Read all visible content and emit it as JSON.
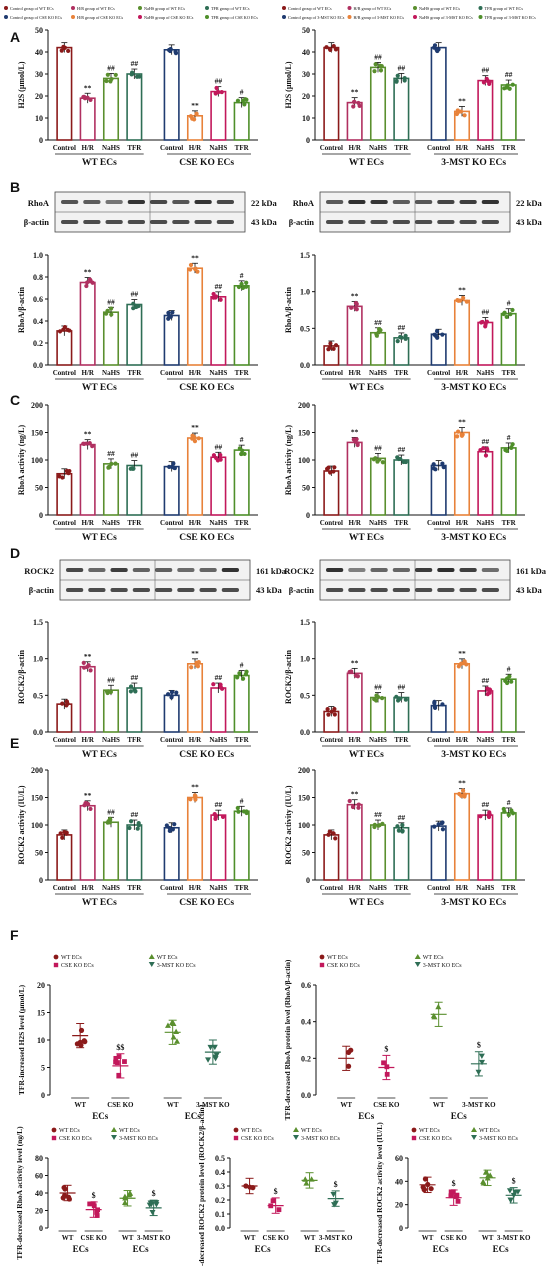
{
  "panel_letters": [
    "A",
    "B",
    "C",
    "D",
    "E",
    "F"
  ],
  "chart_colors": {
    "Control": "#8b1a1a",
    "H/R": "#b03060",
    "NaHS": "#5a8f2e",
    "TFR": "#2e6e55",
    "Control2": "#1f3b70",
    "H/R2": "#e8823a",
    "NaHS2": "#c2185b",
    "TFR2": "#4e8f2a"
  },
  "legend_top": [
    "Control group of WT ECs",
    "H/R group of WT ECs",
    "NaHS group of WT ECs",
    "TFR group of WT ECs",
    "Control group of CSE KO ECs",
    "H/R group of CSE KO ECs",
    "NaHS group of CSE KO ECs",
    "TFR group of CSE KO ECs"
  ],
  "legend_top_right": [
    "Control group of WT ECs",
    "H/R group of WT ECs",
    "NaHS group of WT ECs",
    "TFR group of WT ECs",
    "Control group of 3-MST KO ECs",
    "H/R group of 3-MST KO ECs",
    "NaHS group of 3-MST KO ECs",
    "TFR group of 3-MST KO ECs"
  ],
  "blots": {
    "B_left": {
      "target": "RhoA",
      "target_kda": "22 kDa",
      "actin": "β-actin",
      "actin_kda": "43 kDa"
    },
    "B_right": {
      "target": "RhoA",
      "target_kda": "22 kDa",
      "actin": "β-actin",
      "actin_kda": "43 kDa"
    },
    "D_left": {
      "target": "ROCK2",
      "target_kda": "161 kDa",
      "actin": "β-actin",
      "actin_kda": "43 kDa"
    },
    "D_right": {
      "target": "ROCK2",
      "target_kda": "161 kDa",
      "actin": "β-actin",
      "actin_kda": "43 kDa"
    }
  },
  "chart_data": [
    {
      "panel": "A",
      "type": "bar",
      "ylabel": "H2S (μmol/L)",
      "ylim": [
        0,
        50
      ],
      "yticks": [
        0,
        10,
        20,
        30,
        40,
        50
      ],
      "categories": [
        "Control",
        "H/R",
        "NaHS",
        "TFR",
        "Control",
        "H/R",
        "NaHS",
        "TFR"
      ],
      "groups": [
        "WT ECs",
        "CSE KO ECs"
      ],
      "values": [
        42,
        19,
        28,
        30,
        41,
        11,
        22,
        17
      ],
      "sig": [
        "",
        "**",
        "##",
        "##",
        "",
        "**",
        "##",
        "#"
      ]
    },
    {
      "panel": "A",
      "type": "bar",
      "ylabel": "H2S (μmol/L)",
      "ylim": [
        0,
        50
      ],
      "yticks": [
        0,
        10,
        20,
        30,
        40,
        50
      ],
      "categories": [
        "Control",
        "H/R",
        "NaHS",
        "TFR",
        "Control",
        "H/R",
        "NaHS",
        "TFR"
      ],
      "groups": [
        "WT ECs",
        "3-MST KO ECs"
      ],
      "values": [
        42,
        17,
        33,
        28,
        42,
        13,
        27,
        25
      ],
      "sig": [
        "",
        "**",
        "##",
        "##",
        "",
        "**",
        "##",
        "##"
      ]
    },
    {
      "panel": "B",
      "type": "bar",
      "ylabel": "RhoA/β-actin",
      "ylim": [
        0,
        1.0
      ],
      "yticks": [
        0.0,
        0.2,
        0.4,
        0.6,
        0.8,
        1.0
      ],
      "categories": [
        "Control",
        "H/R",
        "NaHS",
        "TFR",
        "Control",
        "H/R",
        "NaHS",
        "TFR"
      ],
      "groups": [
        "WT ECs",
        "CSE KO ECs"
      ],
      "values": [
        0.31,
        0.75,
        0.48,
        0.55,
        0.45,
        0.88,
        0.62,
        0.72
      ],
      "sig": [
        "",
        "**",
        "##",
        "##",
        "",
        "**",
        "##",
        "#"
      ]
    },
    {
      "panel": "B",
      "type": "bar",
      "ylabel": "RhoA/β-actin",
      "ylim": [
        0,
        1.5
      ],
      "yticks": [
        0.0,
        0.5,
        1.0,
        1.5
      ],
      "categories": [
        "Control",
        "H/R",
        "NaHS",
        "TFR",
        "Control",
        "H/R",
        "NaHS",
        "TFR"
      ],
      "groups": [
        "WT ECs",
        "3-MST KO ECs"
      ],
      "values": [
        0.26,
        0.8,
        0.44,
        0.37,
        0.42,
        0.88,
        0.58,
        0.7
      ],
      "sig": [
        "",
        "**",
        "##",
        "##",
        "",
        "**",
        "##",
        "#"
      ]
    },
    {
      "panel": "C",
      "type": "bar",
      "ylabel": "RhoA activity (ng/L)",
      "ylim": [
        0,
        200
      ],
      "yticks": [
        0,
        50,
        100,
        150,
        200
      ],
      "categories": [
        "Control",
        "H/R",
        "NaHS",
        "TFR",
        "Control",
        "H/R",
        "NaHS",
        "TFR"
      ],
      "groups": [
        "WT ECs",
        "CSE KO ECs"
      ],
      "values": [
        75,
        128,
        93,
        90,
        88,
        140,
        105,
        118
      ],
      "sig": [
        "",
        "**",
        "##",
        "##",
        "",
        "**",
        "##",
        "#"
      ]
    },
    {
      "panel": "C",
      "type": "bar",
      "ylabel": "RhoA activity (ng/L)",
      "ylim": [
        0,
        200
      ],
      "yticks": [
        0,
        50,
        100,
        150,
        200
      ],
      "categories": [
        "Control",
        "H/R",
        "NaHS",
        "TFR",
        "Control",
        "H/R",
        "NaHS",
        "TFR"
      ],
      "groups": [
        "WT ECs",
        "3-MST KO ECs"
      ],
      "values": [
        80,
        132,
        103,
        100,
        90,
        150,
        115,
        122
      ],
      "sig": [
        "",
        "**",
        "##",
        "##",
        "",
        "**",
        "##",
        "#"
      ]
    },
    {
      "panel": "D",
      "type": "bar",
      "ylabel": "ROCK2/β-actin",
      "ylim": [
        0,
        1.5
      ],
      "yticks": [
        0.0,
        0.5,
        1.0,
        1.5
      ],
      "categories": [
        "Control",
        "H/R",
        "NaHS",
        "TFR",
        "Control",
        "H/R",
        "NaHS",
        "TFR"
      ],
      "groups": [
        "WT ECs",
        "CSE KO ECs"
      ],
      "values": [
        0.38,
        0.89,
        0.57,
        0.6,
        0.5,
        0.93,
        0.6,
        0.77
      ],
      "sig": [
        "",
        "**",
        "##",
        "##",
        "",
        "**",
        "##",
        "#"
      ]
    },
    {
      "panel": "D",
      "type": "bar",
      "ylabel": "ROCK2/β-actin",
      "ylim": [
        0,
        1.5
      ],
      "yticks": [
        0.0,
        0.5,
        1.0,
        1.5
      ],
      "categories": [
        "Control",
        "H/R",
        "NaHS",
        "TFR",
        "Control",
        "H/R",
        "NaHS",
        "TFR"
      ],
      "groups": [
        "WT ECs",
        "3-MST KO ECs"
      ],
      "values": [
        0.28,
        0.8,
        0.47,
        0.47,
        0.36,
        0.93,
        0.56,
        0.72
      ],
      "sig": [
        "",
        "**",
        "##",
        "##",
        "",
        "**",
        "##",
        "#"
      ]
    },
    {
      "panel": "E",
      "type": "bar",
      "ylabel": "ROCK2 activity (IU/L)",
      "ylim": [
        0,
        200
      ],
      "yticks": [
        0,
        50,
        100,
        150,
        200
      ],
      "categories": [
        "Control",
        "H/R",
        "NaHS",
        "TFR",
        "Control",
        "H/R",
        "NaHS",
        "TFR"
      ],
      "groups": [
        "WT ECs",
        "CSE KO ECs"
      ],
      "values": [
        82,
        135,
        105,
        100,
        95,
        150,
        118,
        125
      ],
      "sig": [
        "",
        "**",
        "##",
        "##",
        "",
        "**",
        "##",
        "#"
      ]
    },
    {
      "panel": "E",
      "type": "bar",
      "ylabel": "ROCK2 activity (IU/L)",
      "ylim": [
        0,
        200
      ],
      "yticks": [
        0,
        50,
        100,
        150,
        200
      ],
      "categories": [
        "Control",
        "H/R",
        "NaHS",
        "TFR",
        "Control",
        "H/R",
        "NaHS",
        "TFR"
      ],
      "groups": [
        "WT ECs",
        "3-MST KO ECs"
      ],
      "values": [
        82,
        137,
        100,
        95,
        98,
        157,
        118,
        122
      ],
      "sig": [
        "",
        "**",
        "##",
        "##",
        "",
        "**",
        "##",
        "#"
      ]
    },
    {
      "panel": "F",
      "type": "scatter",
      "ylabel": "TFR-increased H2S level (μmol/L)",
      "ylim": [
        0,
        20
      ],
      "yticks": [
        0,
        5,
        10,
        15,
        20
      ],
      "categories": [
        "WT",
        "CSE KO",
        "WT",
        "3-MST KO"
      ],
      "groups": [
        "ECs",
        "ECs"
      ],
      "legend": [
        "WT ECs",
        "CSE KO ECs",
        "WT ECs",
        "3-MST KO ECs"
      ],
      "values": [
        10.8,
        5.3,
        11.4,
        7.8
      ],
      "sig": [
        "",
        "$$",
        "",
        ""
      ]
    },
    {
      "panel": "F",
      "type": "scatter",
      "ylabel": "TFR-decreased RhoA protein level (RhoA/β-actin)",
      "ylim": [
        0,
        0.6
      ],
      "yticks": [
        0.0,
        0.2,
        0.4,
        0.6
      ],
      "categories": [
        "WT",
        "CSE KO",
        "WT",
        "3-MST KO"
      ],
      "groups": [
        "ECs",
        "ECs"
      ],
      "legend": [
        "WT ECs",
        "CSE KO ECs",
        "WT ECs",
        "3-MST KO ECs"
      ],
      "values": [
        0.2,
        0.15,
        0.44,
        0.17
      ],
      "sig": [
        "",
        "$",
        "",
        "$"
      ]
    },
    {
      "panel": "F",
      "type": "scatter",
      "ylabel": "TFR-decreased RhoA activity level (ng/L)",
      "ylim": [
        0,
        80
      ],
      "yticks": [
        0,
        20,
        40,
        60,
        80
      ],
      "categories": [
        "WT",
        "CSE KO",
        "WT",
        "3-MST KO"
      ],
      "groups": [
        "ECs",
        "ECs"
      ],
      "legend": [
        "WT ECs",
        "CSE KO ECs",
        "WT ECs",
        "3-MST KO ECs"
      ],
      "values": [
        40,
        21,
        34,
        23
      ],
      "sig": [
        "",
        "$",
        "",
        "$"
      ]
    },
    {
      "panel": "F",
      "type": "scatter",
      "ylabel": "TFR-decreased ROCK2 protein level (ROCK2/β-actin)",
      "ylim": [
        0,
        0.5
      ],
      "yticks": [
        0.0,
        0.1,
        0.2,
        0.3,
        0.4,
        0.5
      ],
      "categories": [
        "WT",
        "CSE KO",
        "WT",
        "3-MST KO"
      ],
      "groups": [
        "ECs",
        "ECs"
      ],
      "legend": [
        "WT ECs",
        "CSE KO ECs",
        "WT ECs",
        "3-MST KO ECs"
      ],
      "values": [
        0.3,
        0.16,
        0.34,
        0.21
      ],
      "sig": [
        "",
        "$",
        "",
        "$"
      ]
    },
    {
      "panel": "F",
      "type": "scatter",
      "ylabel": "TFR-decreased ROCK2 activity level (IU/L)",
      "ylim": [
        0,
        60
      ],
      "yticks": [
        0,
        20,
        40,
        60
      ],
      "categories": [
        "WT",
        "CSE KO",
        "WT",
        "3-MST KO"
      ],
      "groups": [
        "ECs",
        "ECs"
      ],
      "legend": [
        "WT ECs",
        "CSE KO ECs",
        "WT ECs",
        "3-MST KO ECs"
      ],
      "values": [
        37,
        26,
        43,
        28
      ],
      "sig": [
        "",
        "$",
        "",
        "$"
      ]
    }
  ]
}
